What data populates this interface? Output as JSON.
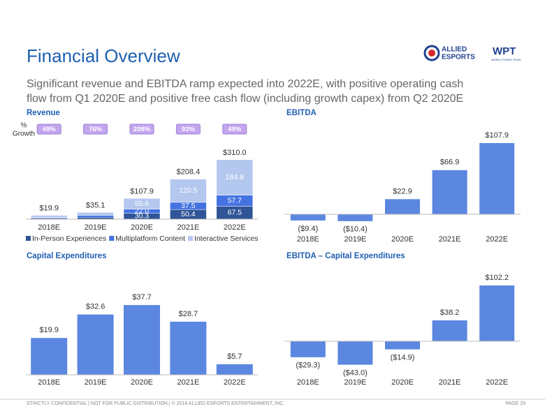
{
  "title": "Financial Overview",
  "subtitle": [
    "Significant revenue and EBITDA ramp expected into 2022E, with positive operating cash",
    "flow from Q1 2020E and positive free cash flow (including growth capex) from Q2 2020E"
  ],
  "logo": {
    "allied": "ALLIED",
    "esports": "ESPORTS",
    "wpt": "WPT",
    "wpt_sub": "WORLD POKER TOUR"
  },
  "footer": {
    "left": "STRICTLY CONFIDENTIAL  |  NOT FOR PUBLIC DISTRIBUTION  |  © 2018 ALLIED ESPORTS ENTERTAINMENT, INC.",
    "page": "PAGE 29"
  },
  "chart_data": [
    {
      "type": "stacked_bar",
      "title": "Revenue",
      "categories": [
        "2018E",
        "2019E",
        "2020E",
        "2021E",
        "2022E"
      ],
      "series": [
        {
          "name": "In-Person Experiences",
          "color": "#2f5597",
          "values": [
            5.0,
            10.0,
            30.3,
            50.4,
            67.5
          ],
          "value_labels": [
            null,
            null,
            "30.3",
            "50.4",
            "67.5"
          ]
        },
        {
          "name": "Multiplatform Content",
          "color": "#4472e0",
          "values": [
            4.0,
            10.0,
            22.0,
            37.5,
            57.7
          ],
          "value_labels": [
            null,
            null,
            "22.0",
            "37.5",
            "57.7"
          ]
        },
        {
          "name": "Interactive Services",
          "color": "#b4c7ee",
          "values": [
            10.9,
            15.1,
            55.6,
            120.5,
            184.8
          ],
          "value_labels": [
            null,
            null,
            "55.6",
            "120.5",
            "184.8"
          ]
        }
      ],
      "totals": [
        19.9,
        35.1,
        107.9,
        208.4,
        310.0
      ],
      "totals_labels": [
        "$19.9",
        "$35.1",
        "$107.9",
        "$208.4",
        "$310.0"
      ],
      "growth": {
        "label": [
          "%",
          "Growth"
        ],
        "values": [
          49,
          76,
          208,
          93,
          49
        ],
        "value_labels": [
          "49%",
          "76%",
          "208%",
          "93%",
          "49%"
        ]
      },
      "ylim": [
        0,
        335
      ],
      "legend": "bottom"
    },
    {
      "type": "bar",
      "title": "EBITDA",
      "categories": [
        "2018E",
        "2019E",
        "2020E",
        "2021E",
        "2022E"
      ],
      "values": [
        -9.4,
        -10.4,
        22.9,
        66.9,
        107.9
      ],
      "value_labels": [
        "($9.4)",
        "($10.4)",
        "$22.9",
        "$66.9",
        "$107.9"
      ],
      "color": "#5b87e0",
      "ylim": [
        -20,
        115
      ]
    },
    {
      "type": "bar",
      "title": "Capital Expenditures",
      "categories": [
        "2018E",
        "2019E",
        "2020E",
        "2021E",
        "2022E"
      ],
      "values": [
        19.9,
        32.6,
        37.7,
        28.7,
        5.7
      ],
      "value_labels": [
        "$19.9",
        "$32.6",
        "$37.7",
        "$28.7",
        "$5.7"
      ],
      "color": "#5b87e0",
      "ylim": [
        0,
        45
      ]
    },
    {
      "type": "bar",
      "title": "EBITDA – Capital Expenditures",
      "categories": [
        "2018E",
        "2019E",
        "2020E",
        "2021E",
        "2022E"
      ],
      "values": [
        -29.3,
        -43.0,
        -14.9,
        38.2,
        102.2
      ],
      "value_labels": [
        "($29.3)",
        "($43.0)",
        "($14.9)",
        "$38.2",
        "$102.2"
      ],
      "color": "#5b87e0",
      "ylim": [
        -50,
        110
      ]
    }
  ]
}
